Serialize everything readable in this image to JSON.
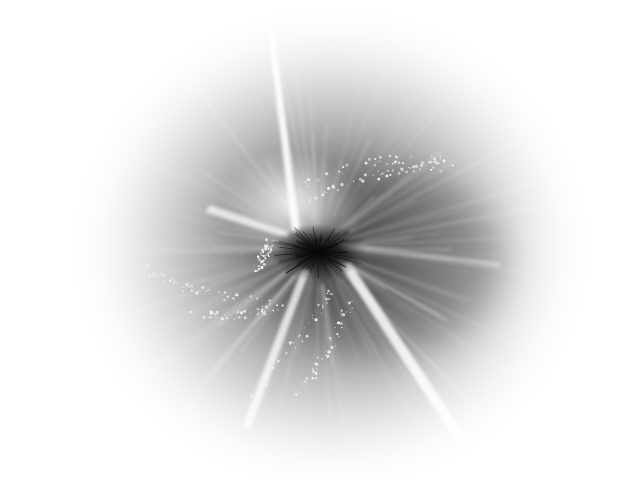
{
  "scene": {
    "kind": "abstract-light-burst",
    "colors": {
      "background": "#ffffff",
      "haze_mid": "#8a8a8a",
      "haze_dark": "#4a4a4a",
      "core": "#111111",
      "flare": "#ffffff",
      "sparkle": "#f2f2f2"
    }
  }
}
